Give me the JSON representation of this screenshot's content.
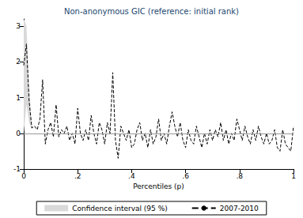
{
  "chart_data": {
    "type": "line",
    "title": "Non-anonymous GIC (reference: initial rank)",
    "x_label": "Percentiles (p)",
    "x": [
      0,
      0.01,
      0.02,
      0.03,
      0.04,
      0.05,
      0.06,
      0.07,
      0.08,
      0.09,
      0.1,
      0.11,
      0.12,
      0.13,
      0.14,
      0.15,
      0.16,
      0.17,
      0.18,
      0.19,
      0.2,
      0.21,
      0.22,
      0.23,
      0.24,
      0.25,
      0.26,
      0.27,
      0.28,
      0.29,
      0.3,
      0.31,
      0.32,
      0.33,
      0.34,
      0.35,
      0.36,
      0.37,
      0.38,
      0.39,
      0.4,
      0.41,
      0.42,
      0.43,
      0.44,
      0.45,
      0.46,
      0.47,
      0.48,
      0.49,
      0.5,
      0.51,
      0.52,
      0.53,
      0.54,
      0.55,
      0.56,
      0.57,
      0.58,
      0.59,
      0.6,
      0.61,
      0.62,
      0.63,
      0.64,
      0.65,
      0.66,
      0.67,
      0.68,
      0.69,
      0.7,
      0.71,
      0.72,
      0.73,
      0.74,
      0.75,
      0.76,
      0.77,
      0.78,
      0.79,
      0.8,
      0.81,
      0.82,
      0.83,
      0.84,
      0.85,
      0.86,
      0.87,
      0.88,
      0.89,
      0.9,
      0.91,
      0.92,
      0.93,
      0.94,
      0.95,
      0.96,
      0.97,
      0.98,
      0.99,
      1
    ],
    "series": [
      {
        "name": "2007-2010",
        "color": "#000000",
        "line_style": "dashed",
        "values": [
          1.9,
          2.5,
          0.9,
          0.15,
          0.2,
          0.1,
          0.4,
          1.5,
          -0.3,
          0.1,
          0.3,
          -0.1,
          0.8,
          -0.1,
          0.1,
          0.0,
          0.2,
          -0.2,
          0.0,
          -0.3,
          0.7,
          0.0,
          -0.2,
          0.1,
          -0.2,
          0.5,
          0.0,
          -0.3,
          0.3,
          0.1,
          -0.3,
          0.3,
          0.0,
          1.7,
          -0.2,
          -0.7,
          0.2,
          0.0,
          -0.2,
          0.1,
          -0.4,
          -0.3,
          0.1,
          0.3,
          -0.2,
          0.0,
          -0.4,
          0.1,
          -0.3,
          -0.1,
          0.4,
          -0.2,
          0.0,
          -0.3,
          0.2,
          0.6,
          0.2,
          -0.1,
          0.3,
          -0.2,
          -0.4,
          0.1,
          -0.2,
          -0.3,
          0.2,
          -0.1,
          -0.4,
          0.0,
          -0.3,
          0.1,
          -0.2,
          0.1,
          -0.1,
          0.3,
          -0.2,
          0.1,
          -0.3,
          0.0,
          -0.2,
          0.4,
          0.1,
          -0.2,
          0.2,
          -0.1,
          -0.3,
          0.1,
          -0.2,
          0.2,
          -0.1,
          -0.3,
          0.0,
          -0.3,
          -0.2,
          0.1,
          -0.4,
          -0.5,
          0.1,
          -0.3,
          -0.4,
          -0.5,
          0.2
        ]
      }
    ],
    "confidence_interval": {
      "name": "Confidence interval (95 %)",
      "color": "#d9d9d9",
      "x": [
        0,
        0.01,
        0.02,
        0.03
      ],
      "lower": [
        0.0,
        0.8,
        0.3,
        0.1
      ],
      "upper": [
        3.2,
        3.0,
        1.3,
        0.2
      ]
    },
    "reference_line": 0,
    "xlim": [
      0,
      1
    ],
    "xticks": [
      0,
      {
        "value": 0.2,
        "label": ".2"
      },
      {
        "value": 0.4,
        "label": ".4"
      },
      {
        "value": 0.6,
        "label": ".6"
      },
      {
        "value": 0.8,
        "label": ".8"
      },
      1
    ],
    "ylim": [
      -1,
      3.2
    ],
    "yticks": [
      -1,
      0,
      1,
      2,
      3
    ],
    "grid": false,
    "legend": "bottom"
  }
}
